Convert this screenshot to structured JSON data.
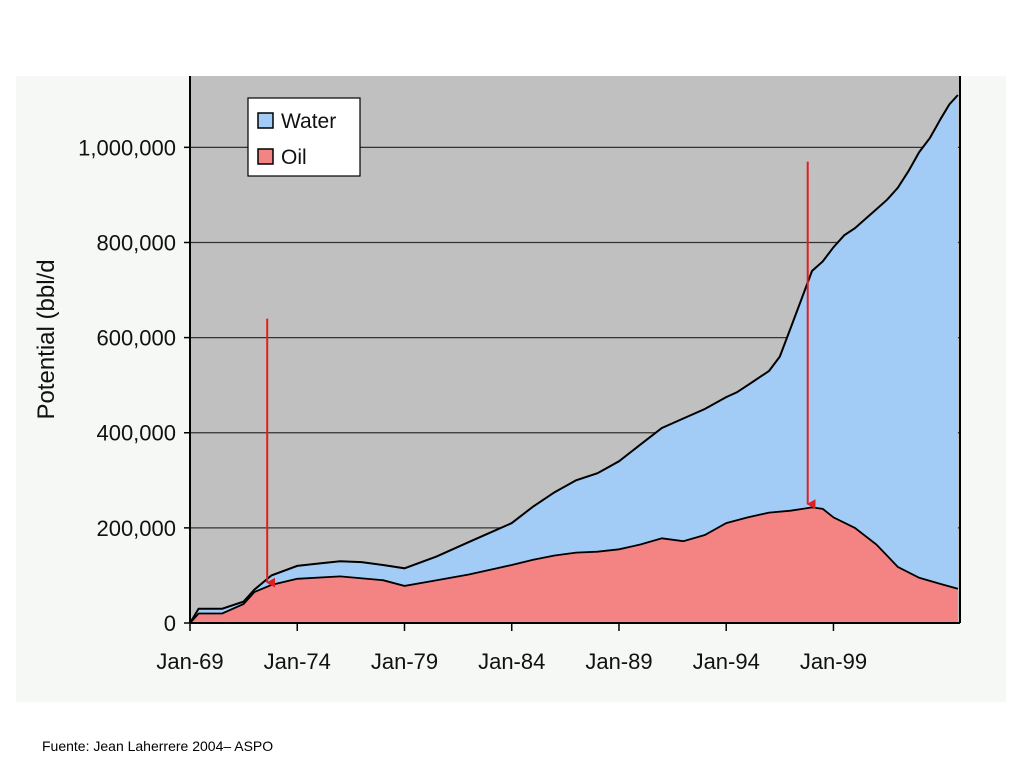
{
  "chart_data": {
    "type": "area",
    "title": "",
    "xlabel": "",
    "ylabel": "Potential (bbl/d",
    "categories": [
      "Jan-69",
      "Jan-74",
      "Jan-79",
      "Jan-84",
      "Jan-89",
      "Jan-94",
      "Jan-99"
    ],
    "xlim": [
      1969,
      2004.9
    ],
    "ylim": [
      0,
      1150000
    ],
    "yticks": [
      0,
      200000,
      400000,
      600000,
      800000,
      1000000
    ],
    "ytick_labels": [
      "0",
      "200,000",
      "400,000",
      "600,000",
      "800,000",
      "1,000,000"
    ],
    "grid": "horizontal",
    "legend_position": "top-left",
    "stacking": "stacked",
    "series": [
      {
        "name": "Water",
        "color": "#a2cbf5",
        "total_x": [
          1969.0,
          1969.4,
          1970.5,
          1971.5,
          1972.0,
          1972.8,
          1974.0,
          1975.0,
          1976.0,
          1977.0,
          1978.0,
          1979.0,
          1980.5,
          1982.0,
          1983.0,
          1984.0,
          1985.0,
          1986.0,
          1987.0,
          1988.0,
          1989.0,
          1990.0,
          1991.0,
          1992.0,
          1993.0,
          1994.0,
          1994.5,
          1995.0,
          1996.0,
          1996.5,
          1997.0,
          1997.5,
          1998.0,
          1998.5,
          1999.0,
          1999.5,
          2000.0,
          2000.5,
          2001.0,
          2001.5,
          2002.0,
          2002.5,
          2003.0,
          2003.5,
          2004.0,
          2004.4,
          2004.8
        ],
        "total_y": [
          0,
          30000,
          30000,
          45000,
          70000,
          100000,
          120000,
          125000,
          130000,
          128000,
          122000,
          115000,
          140000,
          170000,
          190000,
          210000,
          245000,
          275000,
          300000,
          315000,
          340000,
          375000,
          410000,
          430000,
          450000,
          475000,
          485000,
          500000,
          530000,
          560000,
          620000,
          680000,
          740000,
          760000,
          790000,
          815000,
          830000,
          850000,
          870000,
          890000,
          915000,
          950000,
          990000,
          1020000,
          1060000,
          1090000,
          1110000
        ]
      },
      {
        "name": "Oil",
        "color": "#f48383",
        "x": [
          1969.0,
          1969.4,
          1970.5,
          1971.5,
          1972.0,
          1972.8,
          1974.0,
          1976.0,
          1978.0,
          1979.0,
          1980.5,
          1982.0,
          1983.0,
          1984.0,
          1985.0,
          1986.0,
          1987.0,
          1988.0,
          1989.0,
          1990.0,
          1991.0,
          1992.0,
          1993.0,
          1994.0,
          1995.0,
          1996.0,
          1997.0,
          1998.0,
          1998.5,
          1999.0,
          2000.0,
          2001.0,
          2002.0,
          2003.0,
          2004.0,
          2004.8
        ],
        "y": [
          0,
          20000,
          20000,
          40000,
          65000,
          80000,
          93000,
          98000,
          90000,
          78000,
          90000,
          102000,
          112000,
          122000,
          133000,
          142000,
          148000,
          150000,
          155000,
          165000,
          178000,
          172000,
          185000,
          210000,
          222000,
          232000,
          236000,
          243000,
          240000,
          222000,
          200000,
          165000,
          118000,
          95000,
          82000,
          72000
        ]
      }
    ],
    "annotations": [
      {
        "type": "arrow",
        "color": "#e02020",
        "x": 1972.6,
        "y_from": 640000,
        "y_to": 85000
      },
      {
        "type": "arrow",
        "color": "#e02020",
        "x": 1997.8,
        "y_from": 970000,
        "y_to": 250000
      }
    ]
  },
  "source": "Fuente: Jean Laherrere 2004– ASPO"
}
